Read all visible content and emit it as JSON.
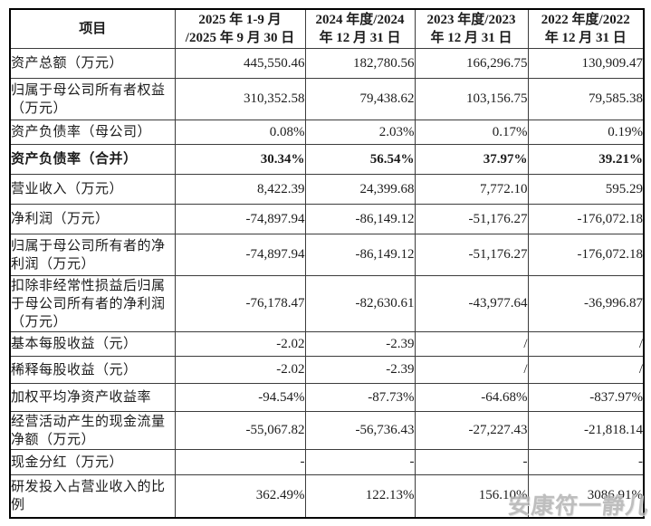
{
  "watermark": {
    "text": "安康符一静儿",
    "color": "#b3b3b3"
  },
  "table": {
    "columns": [
      {
        "lines": [
          "项目"
        ]
      },
      {
        "lines": [
          "2025 年 1-9 月",
          "/2025 年 9 月 30 日"
        ]
      },
      {
        "lines": [
          "2024 年度/2024",
          "年 12 月 31 日"
        ]
      },
      {
        "lines": [
          "2023 年度/2023",
          "年 12 月 31 日"
        ]
      },
      {
        "lines": [
          "2022 年度/2022",
          "年 12 月 31 日"
        ]
      }
    ],
    "rows": [
      {
        "label": "资产总额（万元）",
        "values": [
          "445,550.46",
          "182,780.56",
          "166,296.75",
          "130,909.47"
        ],
        "bold": false
      },
      {
        "label": "归属于母公司所有者权益（万元）",
        "values": [
          "310,352.58",
          "79,438.62",
          "103,156.75",
          "79,585.38"
        ],
        "bold": false
      },
      {
        "label": "资产负债率（母公司）",
        "values": [
          "0.08%",
          "2.03%",
          "0.17%",
          "0.19%"
        ],
        "bold": false
      },
      {
        "label": "资产负债率（合并）",
        "values": [
          "30.34%",
          "56.54%",
          "37.97%",
          "39.21%"
        ],
        "bold": true
      },
      {
        "label": "营业收入（万元）",
        "values": [
          "8,422.39",
          "24,399.68",
          "7,772.10",
          "595.29"
        ],
        "bold": false
      },
      {
        "label": "净利润（万元）",
        "values": [
          "-74,897.94",
          "-86,149.12",
          "-51,176.27",
          "-176,072.18"
        ],
        "bold": false
      },
      {
        "label": "归属于母公司所有者的净利润（万元）",
        "values": [
          "-74,897.94",
          "-86,149.12",
          "-51,176.27",
          "-176,072.18"
        ],
        "bold": false
      },
      {
        "label": "扣除非经常性损益后归属于母公司所有者的净利润（万元）",
        "values": [
          "-76,178.47",
          "-82,630.61",
          "-43,977.64",
          "-36,996.87"
        ],
        "bold": false
      },
      {
        "label": "基本每股收益（元）",
        "values": [
          "-2.02",
          "-2.39",
          "/",
          "/"
        ],
        "bold": false
      },
      {
        "label": "稀释每股收益（元）",
        "values": [
          "-2.02",
          "-2.39",
          "/",
          "/"
        ],
        "bold": false
      },
      {
        "label": "加权平均净资产收益率",
        "values": [
          "-94.54%",
          "-87.73%",
          "-64.68%",
          "-837.97%"
        ],
        "bold": false
      },
      {
        "label": "经营活动产生的现金流量净额（万元）",
        "values": [
          "-55,067.82",
          "-56,736.43",
          "-27,227.43",
          "-21,818.14"
        ],
        "bold": false
      },
      {
        "label": "现金分红（万元）",
        "values": [
          "-",
          "-",
          "-",
          "-"
        ],
        "bold": false
      },
      {
        "label": "研发投入占营业收入的比例",
        "values": [
          "362.49%",
          "122.13%",
          "156.10%",
          "3086.91%"
        ],
        "bold": false
      }
    ]
  }
}
